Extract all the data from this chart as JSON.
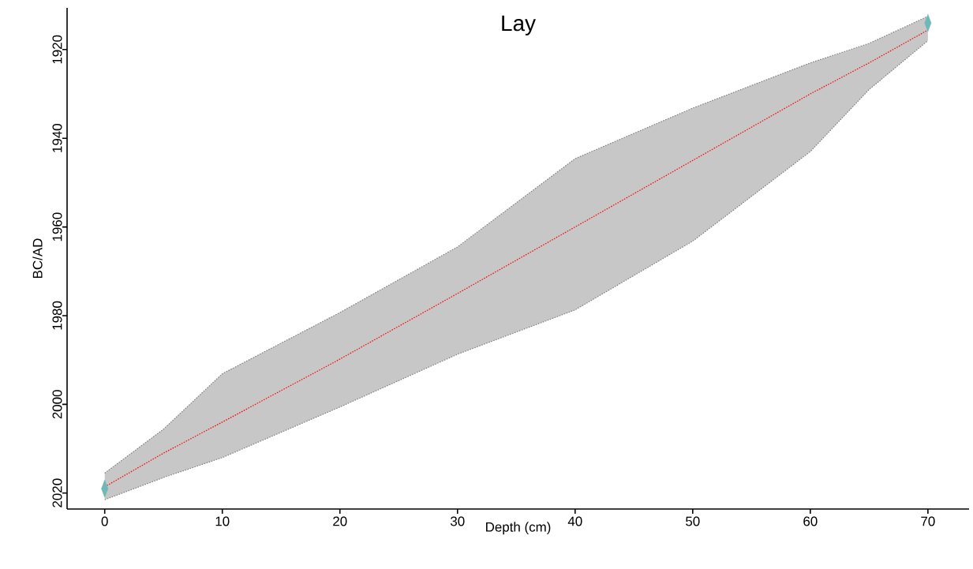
{
  "chart_data": {
    "type": "line",
    "title": "Lay",
    "xlabel": "Depth (cm)",
    "ylabel": "BC/AD",
    "xlim": [
      -3.2,
      73.5
    ],
    "xticks": [
      0,
      10,
      20,
      30,
      40,
      50,
      60,
      70
    ],
    "ylim": [
      2023.6,
      1910.6
    ],
    "yticks": [
      1920,
      1940,
      1960,
      1980,
      2000,
      2020
    ],
    "series": [
      {
        "type": "scatter",
        "color": "#6fb8b8",
        "marker": "diamond",
        "x": [
          0,
          70
        ],
        "values": [
          2019,
          1914
        ]
      },
      {
        "color": "#808080",
        "line_style": "dotted",
        "marker": "none",
        "x": [
          0,
          5,
          10,
          20,
          30,
          40,
          50,
          60,
          65,
          70
        ],
        "values": [
          2021.5,
          2016.5,
          2012,
          2000.6,
          1988.7,
          1978.7,
          1963.2,
          1943,
          1929,
          1918
        ]
      },
      {
        "color": "#808080",
        "line_style": "dotted",
        "marker": "none",
        "x": [
          0,
          5,
          10,
          20,
          30,
          40,
          50,
          60,
          65,
          70
        ],
        "values": [
          2015.5,
          2005.6,
          1993.1,
          1979.3,
          1964.5,
          1944.6,
          1933.2,
          1923,
          1918.6,
          1912.5
        ]
      },
      {
        "color": "#ff0000",
        "line_style": "dotted",
        "marker": "none",
        "x": [
          0,
          5,
          10,
          20,
          30,
          40,
          50,
          60,
          65,
          70
        ],
        "values": [
          2018.6,
          2011,
          2004,
          1989.8,
          1975,
          1960,
          1945,
          1930,
          1923,
          1915.6
        ],
        "lower": [
          2021.5,
          2016.5,
          2012,
          2000.6,
          1988.7,
          1978.7,
          1963.2,
          1943,
          1929,
          1918
        ],
        "upper": [
          2015.5,
          2005.6,
          1993.1,
          1979.3,
          1964.5,
          1944.6,
          1933.2,
          1923,
          1918.6,
          1912.5
        ]
      }
    ]
  }
}
